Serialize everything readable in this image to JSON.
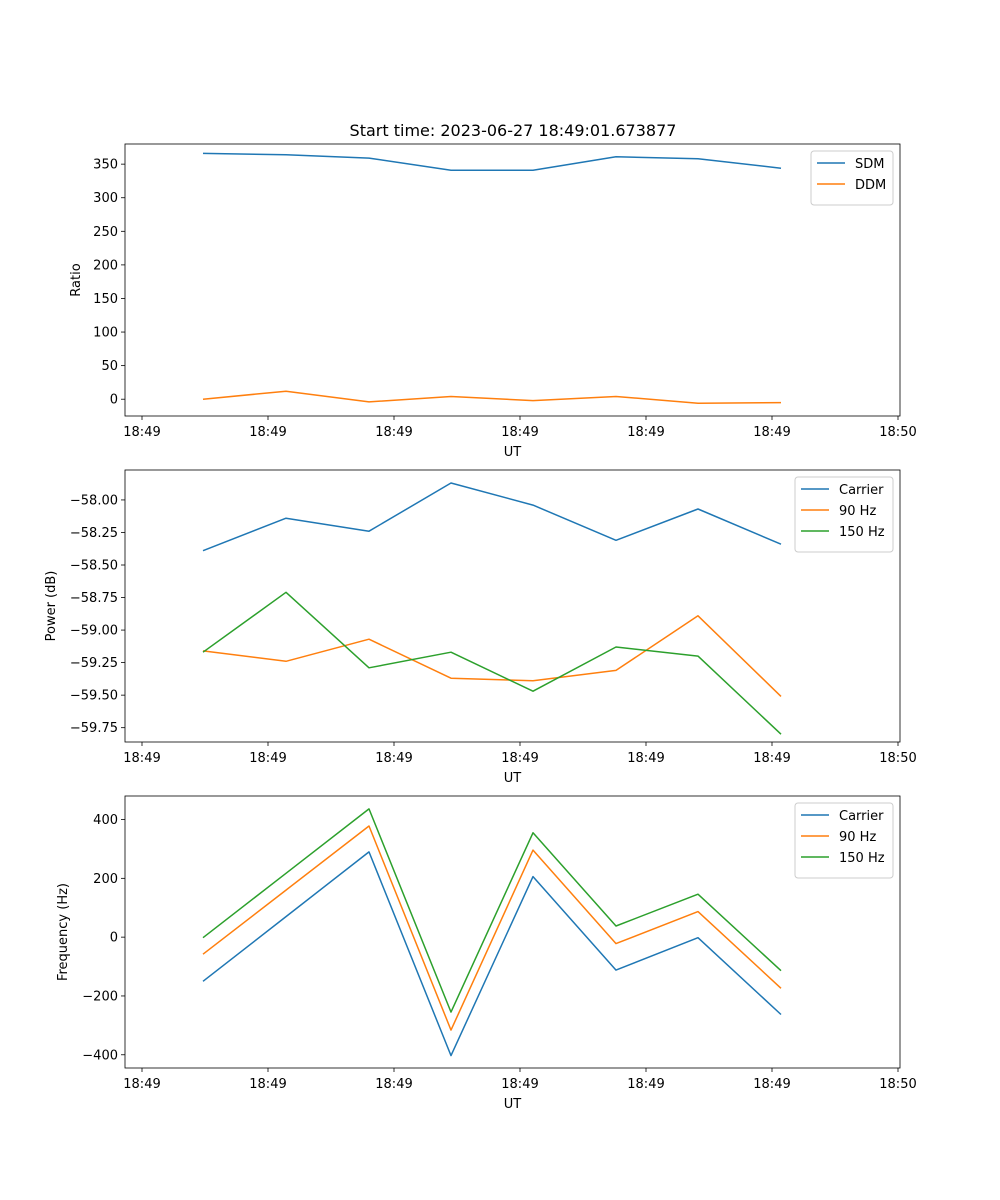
{
  "figure_title": "Start time: 2023-06-27 18:49:01.673877",
  "colors": {
    "blue": "#1f77b4",
    "orange": "#ff7f0e",
    "green": "#2ca02c"
  },
  "chart_data": [
    {
      "type": "line",
      "xlabel": "UT",
      "ylabel": "Ratio",
      "x_ticks": [
        "18:49",
        "18:49",
        "18:49",
        "18:49",
        "18:49",
        "18:49",
        "18:50"
      ],
      "y_ticks": [
        "0",
        "50",
        "100",
        "150",
        "200",
        "250",
        "300",
        "350"
      ],
      "ylim": [
        -25,
        380
      ],
      "legend_position": "upper right",
      "series": [
        {
          "name": "SDM",
          "color": "#1f77b4",
          "values": [
            366,
            364,
            359,
            341,
            341,
            361,
            358,
            344
          ]
        },
        {
          "name": "DDM",
          "color": "#ff7f0e",
          "values": [
            0,
            12,
            -4,
            4,
            -2,
            4,
            -6,
            -5
          ]
        }
      ]
    },
    {
      "type": "line",
      "xlabel": "UT",
      "ylabel": "Power (dB)",
      "x_ticks": [
        "18:49",
        "18:49",
        "18:49",
        "18:49",
        "18:49",
        "18:49",
        "18:50"
      ],
      "y_ticks": [
        "−58.00",
        "−58.25",
        "−58.50",
        "−58.75",
        "−59.00",
        "−59.25",
        "−59.50",
        "−59.75"
      ],
      "ylim": [
        -59.86,
        -57.77
      ],
      "legend_position": "upper right",
      "series": [
        {
          "name": "Carrier",
          "color": "#1f77b4",
          "values": [
            -58.39,
            -58.14,
            -58.24,
            -57.87,
            -58.04,
            -58.31,
            -58.07,
            -58.34
          ]
        },
        {
          "name": "90 Hz",
          "color": "#ff7f0e",
          "values": [
            -59.16,
            -59.24,
            -59.07,
            -59.37,
            -59.39,
            -59.31,
            -58.89,
            -59.51
          ]
        },
        {
          "name": "150 Hz",
          "color": "#2ca02c",
          "values": [
            -59.17,
            -58.71,
            -59.29,
            -59.17,
            -59.47,
            -59.13,
            -59.2,
            -59.8
          ]
        }
      ]
    },
    {
      "type": "line",
      "xlabel": "UT",
      "ylabel": "Frequency (Hz)",
      "x_ticks": [
        "18:49",
        "18:49",
        "18:49",
        "18:49",
        "18:49",
        "18:49",
        "18:50"
      ],
      "y_ticks": [
        "−400",
        "−200",
        "0",
        "200",
        "400"
      ],
      "ylim": [
        -445,
        480
      ],
      "legend_position": "upper right",
      "series": [
        {
          "name": "Carrier",
          "color": "#1f77b4",
          "values": [
            -150,
            70,
            290,
            -403,
            206,
            -112,
            -2,
            -263
          ]
        },
        {
          "name": "90 Hz",
          "color": "#ff7f0e",
          "values": [
            -58,
            160,
            378,
            -316,
            296,
            -22,
            87,
            -174
          ]
        },
        {
          "name": "150 Hz",
          "color": "#2ca02c",
          "values": [
            -2,
            217,
            436,
            -255,
            355,
            38,
            146,
            -114
          ]
        }
      ]
    }
  ]
}
